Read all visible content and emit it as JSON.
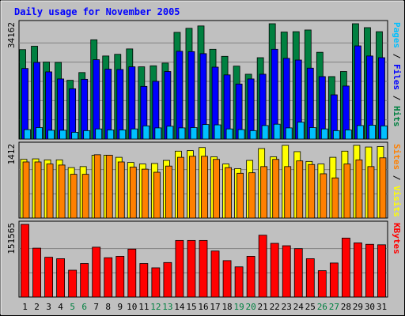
{
  "chart_data": {
    "type": "bar",
    "title": "Daily usage for November 2005",
    "days": [
      "1",
      "2",
      "3",
      "4",
      "5",
      "6",
      "7",
      "8",
      "9",
      "10",
      "11",
      "12",
      "13",
      "14",
      "15",
      "16",
      "17",
      "18",
      "19",
      "20",
      "21",
      "22",
      "23",
      "24",
      "25",
      "26",
      "27",
      "28",
      "29",
      "30",
      "31"
    ],
    "weekend_days": [
      "5",
      "6",
      "12",
      "13",
      "19",
      "20",
      "26",
      "27"
    ],
    "colors": {
      "hits": "#008040",
      "files": "#0000ff",
      "pages": "#00c0ff",
      "visits": "#ffff00",
      "sites": "#ff8000",
      "kbytes": "#ff0000",
      "weekend_label": "#008040",
      "weekday_label": "#000000",
      "title": "#0000ff",
      "background": "#c0c0c0",
      "plot_bg": "#c0c0c0"
    },
    "panels": [
      {
        "id": "top",
        "max_label": "34162",
        "ymax": 34162,
        "series": [
          {
            "name": "Hits",
            "color": "#008040",
            "values": [
              26500,
              27500,
              22800,
              22700,
              17400,
              19700,
              29400,
              24600,
              25100,
              26700,
              21400,
              21700,
              22500,
              31600,
              32800,
              33500,
              26600,
              24500,
              21600,
              19200,
              24100,
              34162,
              31700,
              31800,
              32300,
              25700,
              18500,
              20000,
              34162,
              33000,
              31800
            ]
          },
          {
            "name": "Files",
            "color": "#0000ff",
            "values": [
              20900,
              22700,
              19900,
              17800,
              14900,
              17700,
              23500,
              20700,
              20600,
              21400,
              15600,
              17100,
              20000,
              26000,
              25900,
              25300,
              21300,
              19000,
              16300,
              17800,
              19200,
              26600,
              23900,
              23400,
              21000,
              18500,
              13100,
              15700,
              27600,
              24600,
              24100
            ]
          },
          {
            "name": "Pages",
            "color": "#00c0ff",
            "values": [
              2800,
              3400,
              2600,
              2600,
              2000,
              2500,
              3000,
              2700,
              2700,
              3000,
              3900,
              3300,
              3800,
              3300,
              3400,
              4300,
              4200,
              3000,
              2800,
              2500,
              4000,
              4400,
              3300,
              5000,
              3400,
              3000,
              2500,
              2700,
              4000,
              4100,
              3900
            ]
          }
        ],
        "axis_label_parts": [
          {
            "text": "Pages",
            "color": "#00c0ff"
          },
          {
            "text": " / ",
            "color": "#000000"
          },
          {
            "text": "Files",
            "color": "#0000ff"
          },
          {
            "text": " / ",
            "color": "#000000"
          },
          {
            "text": "Hits",
            "color": "#008040"
          }
        ]
      },
      {
        "id": "middle",
        "max_label": "1412",
        "ymax": 1412,
        "series": [
          {
            "name": "Visits",
            "color": "#ffff00",
            "values": [
              1140,
              1150,
              1130,
              1130,
              980,
              1000,
              1220,
              1220,
              1180,
              1080,
              1050,
              1060,
              1120,
              1300,
              1310,
              1370,
              1190,
              1050,
              960,
              1120,
              1350,
              1190,
              1412,
              1290,
              1100,
              1050,
              1180,
              1300,
              1412,
              1380,
              1390
            ]
          },
          {
            "name": "Sites",
            "color": "#ff8000",
            "values": [
              1090,
              1090,
              1050,
              1030,
              850,
              850,
              1230,
              1220,
              1090,
              990,
              950,
              890,
              1010,
              1180,
              1200,
              1200,
              1140,
              980,
              870,
              880,
              1000,
              1140,
              1000,
              1110,
              1040,
              860,
              780,
              1050,
              1130,
              1000,
              1170
            ]
          }
        ],
        "axis_label_parts": [
          {
            "text": "Sites",
            "color": "#ff8000"
          },
          {
            "text": " / ",
            "color": "#000000"
          },
          {
            "text": "Visits",
            "color": "#ffff00"
          }
        ]
      },
      {
        "id": "bottom",
        "max_label": "151565",
        "ymax": 151565,
        "series": [
          {
            "name": "KBytes",
            "color": "#ff0000",
            "values": [
              151565,
              102000,
              83000,
              80000,
              56000,
              70000,
              104000,
              82000,
              85000,
              100000,
              70000,
              61000,
              72000,
              118000,
              118000,
              118000,
              96000,
              76000,
              63000,
              85000,
              129000,
              112000,
              107000,
              101000,
              80000,
              55000,
              71000,
              123000,
              113000,
              110000,
              109000
            ]
          }
        ],
        "axis_label_parts": [
          {
            "text": "KBytes",
            "color": "#ff0000"
          }
        ]
      }
    ]
  }
}
